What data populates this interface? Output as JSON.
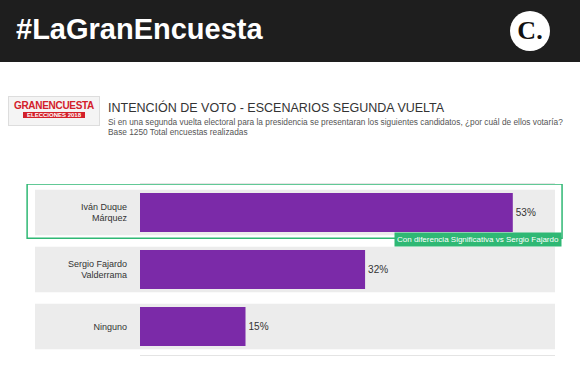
{
  "header": {
    "hashtag": "#LaGranEncuesta",
    "brand": "C.",
    "logo": [
      "GRANENCUESTA",
      "ELECCIONES 2018"
    ]
  },
  "chart_data": {
    "type": "bar",
    "orientation": "horizontal",
    "title": "INTENCIÓN DE VOTO  - ESCENARIOS SEGUNDA VUELTA",
    "subtitle": [
      "Si en una segunda vuelta electoral para la presidencia se presentaran los siguientes candidatos, ¿por cuál de ellos votaría?",
      "Base 1250 Total encuestas realizadas"
    ],
    "categories": [
      "Iván Duque Márquez",
      "Sergio Fajardo Valderrama",
      "Ninguno"
    ],
    "values": [
      53,
      32,
      15
    ],
    "value_labels": [
      "53%",
      "32%",
      "15%"
    ],
    "data_labels": true,
    "color": "#7b2aa8",
    "xlim": [
      0,
      59
    ],
    "xticks": [],
    "tick_labels": "y",
    "grid": false,
    "annotations": [
      {
        "category": "Iván Duque Márquez",
        "text": "Con diferencia Significativa vs Sergio Fajardo"
      }
    ]
  }
}
